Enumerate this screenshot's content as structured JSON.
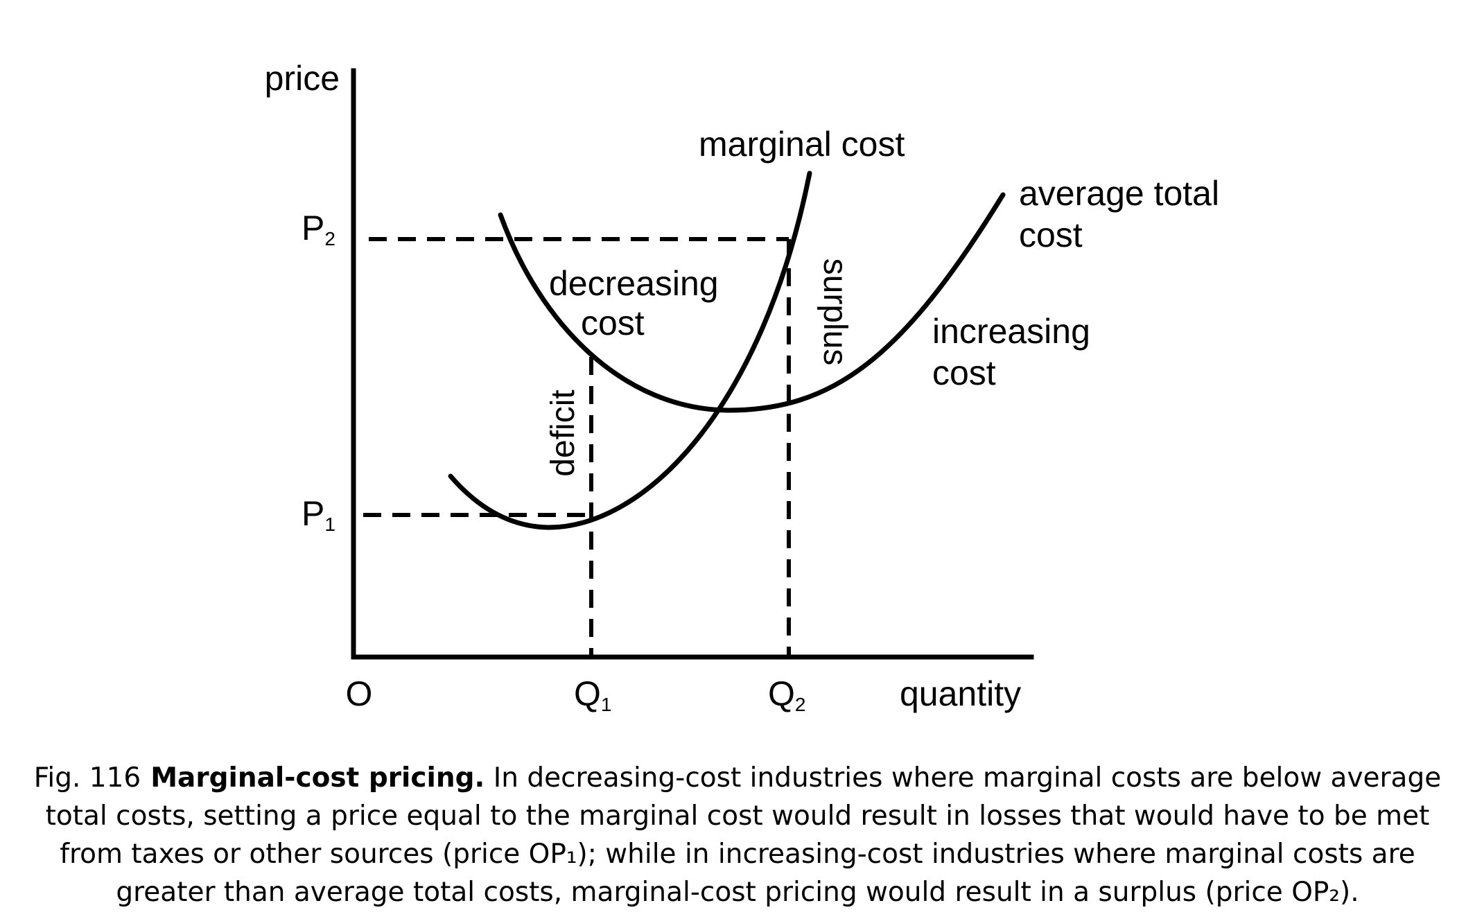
{
  "diagram": {
    "axes": {
      "y_label": "price",
      "x_label": "quantity",
      "origin_label": "O"
    },
    "price_ticks": [
      {
        "base": "P",
        "sub": "2"
      },
      {
        "base": "P",
        "sub": "1"
      }
    ],
    "quantity_ticks": [
      {
        "base": "Q",
        "sub": "1"
      },
      {
        "base": "Q",
        "sub": "2"
      }
    ],
    "curves": {
      "marginal_cost": "marginal cost",
      "average_total_cost_line1": "average total",
      "average_total_cost_line2": "cost"
    },
    "regions": {
      "decreasing_line1": "decreasing",
      "decreasing_line2": "cost",
      "increasing_line1": "increasing",
      "increasing_line2": "cost",
      "deficit": "deficit",
      "surplus": "surplus"
    }
  },
  "caption": {
    "figure_number": "Fig. 116",
    "title": "Marginal-cost pricing.",
    "text": "In decreasing-cost industries where marginal costs are below average total costs, setting a price equal to the marginal cost would result in losses that would have to be met from taxes or other sources (price OP₁); while in increasing-cost industries where marginal costs are greater than average total costs, marginal-cost pricing would result in a surplus (price OP₂)."
  }
}
